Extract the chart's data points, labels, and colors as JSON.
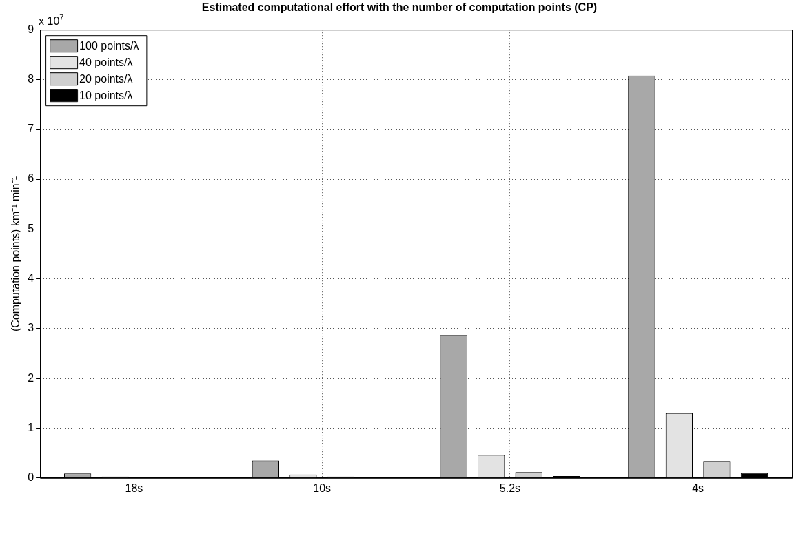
{
  "chart_data": {
    "type": "bar",
    "title": "Estimated computational effort with the number of computation points (CP)",
    "ylabel": "(Computation points) km⁻¹ min⁻¹",
    "annotations": [
      "x 10$^{7}$"
    ],
    "categories": [
      "18s",
      "10s",
      "5.2s",
      "4s"
    ],
    "series": [
      {
        "name": "100 points/λ",
        "color": "#a8a8a8",
        "values": [
          0.09,
          0.35,
          2.87,
          8.08
        ]
      },
      {
        "name": "40 points/λ",
        "color": "#e3e3e3",
        "values": [
          0.03,
          0.07,
          0.46,
          1.3
        ]
      },
      {
        "name": "20 points/λ",
        "color": "#cfcfcf",
        "values": [
          null,
          0.03,
          0.12,
          0.34
        ]
      },
      {
        "name": "10 points/λ",
        "color": "#000000",
        "values": [
          null,
          null,
          0.04,
          0.1
        ]
      }
    ],
    "ylim": [
      0,
      9
    ],
    "yticks": [
      0,
      1,
      2,
      3,
      4,
      5,
      6,
      7,
      8,
      9
    ],
    "grid": true,
    "legend": "top left"
  }
}
